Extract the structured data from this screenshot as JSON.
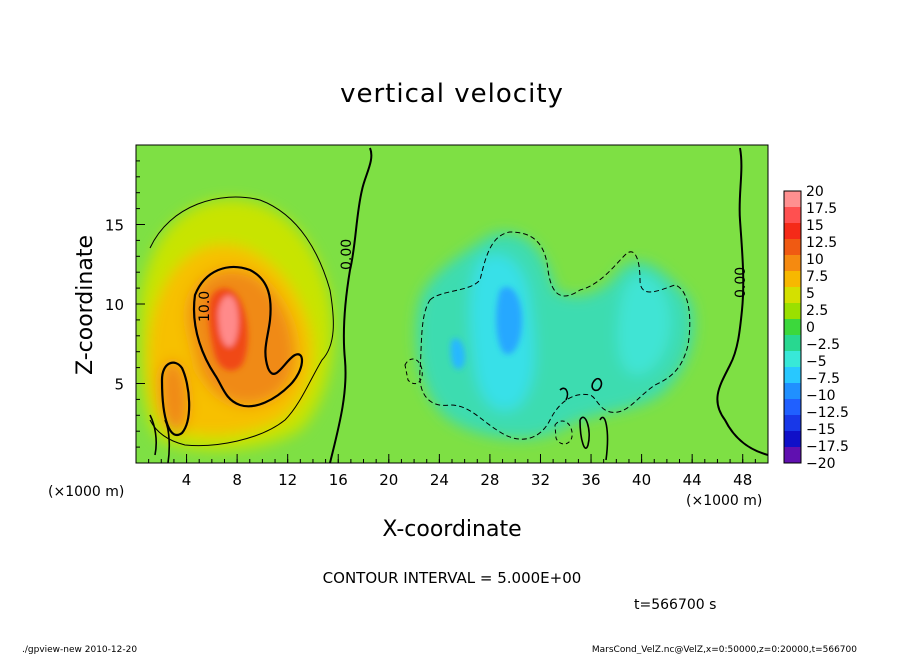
{
  "chart_data": {
    "type": "heatmap",
    "title": "vertical velocity",
    "xlabel": "X-coordinate",
    "ylabel": "Z-coordinate",
    "x_unit_left": "(×1000 m)",
    "x_unit_right": "(×1000 m)",
    "xlim": [
      0,
      50
    ],
    "ylim": [
      0,
      20
    ],
    "x_ticks": [
      "4",
      "8",
      "12",
      "16",
      "20",
      "24",
      "28",
      "32",
      "36",
      "40",
      "44",
      "48"
    ],
    "x_tick_values": [
      4,
      8,
      12,
      16,
      20,
      24,
      28,
      32,
      36,
      40,
      44,
      48
    ],
    "y_ticks": [
      "5",
      "10",
      "15"
    ],
    "y_tick_values": [
      5,
      10,
      15
    ],
    "contour_interval_text": "CONTOUR INTERVAL = 5.000E+00",
    "time_text": "t=566700 s",
    "contour_labels": [
      "10.0",
      "0.00",
      "0.00"
    ],
    "colorbar": {
      "labels": [
        "20",
        "17.5",
        "15",
        "12.5",
        "10",
        "7.5",
        "5",
        "2.5",
        "0",
        "−2.5",
        "−5",
        "−7.5",
        "−10",
        "−12.5",
        "−15",
        "−17.5",
        "−20"
      ],
      "levels": [
        20,
        17.5,
        15,
        12.5,
        10,
        7.5,
        5,
        2.5,
        0,
        -2.5,
        -5,
        -7.5,
        -10,
        -12.5,
        -15,
        -17.5,
        -20
      ],
      "colors": [
        "#ff9090",
        "#ff5050",
        "#f52a18",
        "#f05a12",
        "#f58a10",
        "#f7b800",
        "#d4e000",
        "#9ae000",
        "#3cd83c",
        "#28d890",
        "#38e8d8",
        "#28c8ff",
        "#2090ff",
        "#2060ff",
        "#1838e8",
        "#1010c8",
        "#6010b0"
      ]
    },
    "background_color": "#7ee044",
    "features": [
      {
        "kind": "updraft",
        "label": "10.0",
        "x": 7.2,
        "z": 9.5,
        "max": 20
      },
      {
        "kind": "updraft",
        "x": 3.2,
        "z": 4.0,
        "max": 12
      },
      {
        "kind": "downdraft",
        "x": 29.5,
        "z": 9.0,
        "min": -10
      },
      {
        "kind": "downdraft",
        "x": 42.5,
        "z": 8.0,
        "min": -5
      }
    ]
  },
  "footer": {
    "left": "./gpview-new  2010-12-20",
    "right": "MarsCond_VelZ.nc@VelZ,x=0:50000,z=0:20000,t=566700"
  }
}
